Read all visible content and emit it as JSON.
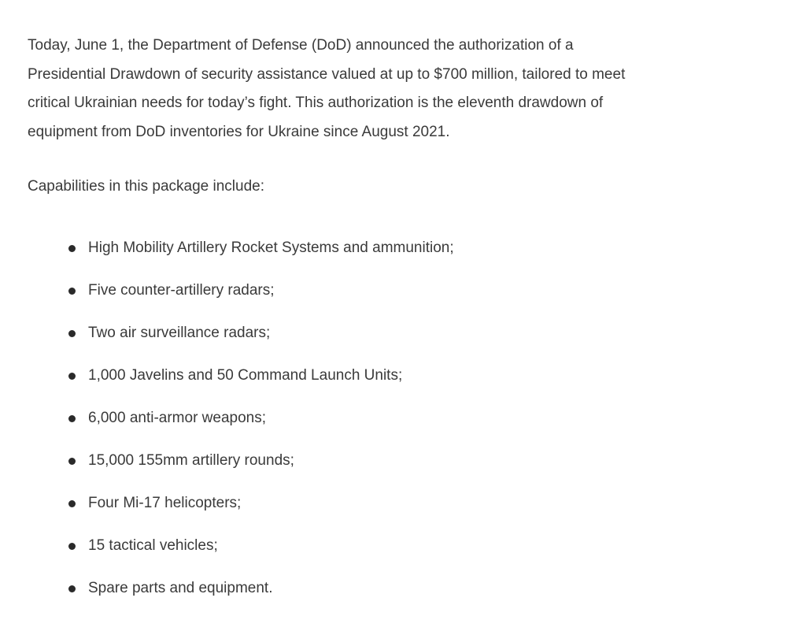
{
  "paragraph_lines": [
    "Today, June 1, the Department of Defense (DoD) announced the authorization of a",
    "Presidential Drawdown of security assistance valued at up to $700 million, tailored to meet",
    "critical Ukrainian needs for today’s fight. This authorization is the eleventh drawdown of",
    "equipment from DoD inventories for Ukraine since August 2021."
  ],
  "list_intro": "Capabilities in this package include:",
  "items": [
    "High Mobility Artillery Rocket Systems and ammunition;",
    "Five counter-artillery radars;",
    "Two air surveillance radars;",
    "1,000 Javelins and 50 Command Launch Units;",
    "6,000 anti-armor weapons;",
    "15,000 155mm artillery rounds;",
    "Four Mi-17 helicopters;",
    "15 tactical vehicles;",
    "Spare parts and equipment."
  ]
}
